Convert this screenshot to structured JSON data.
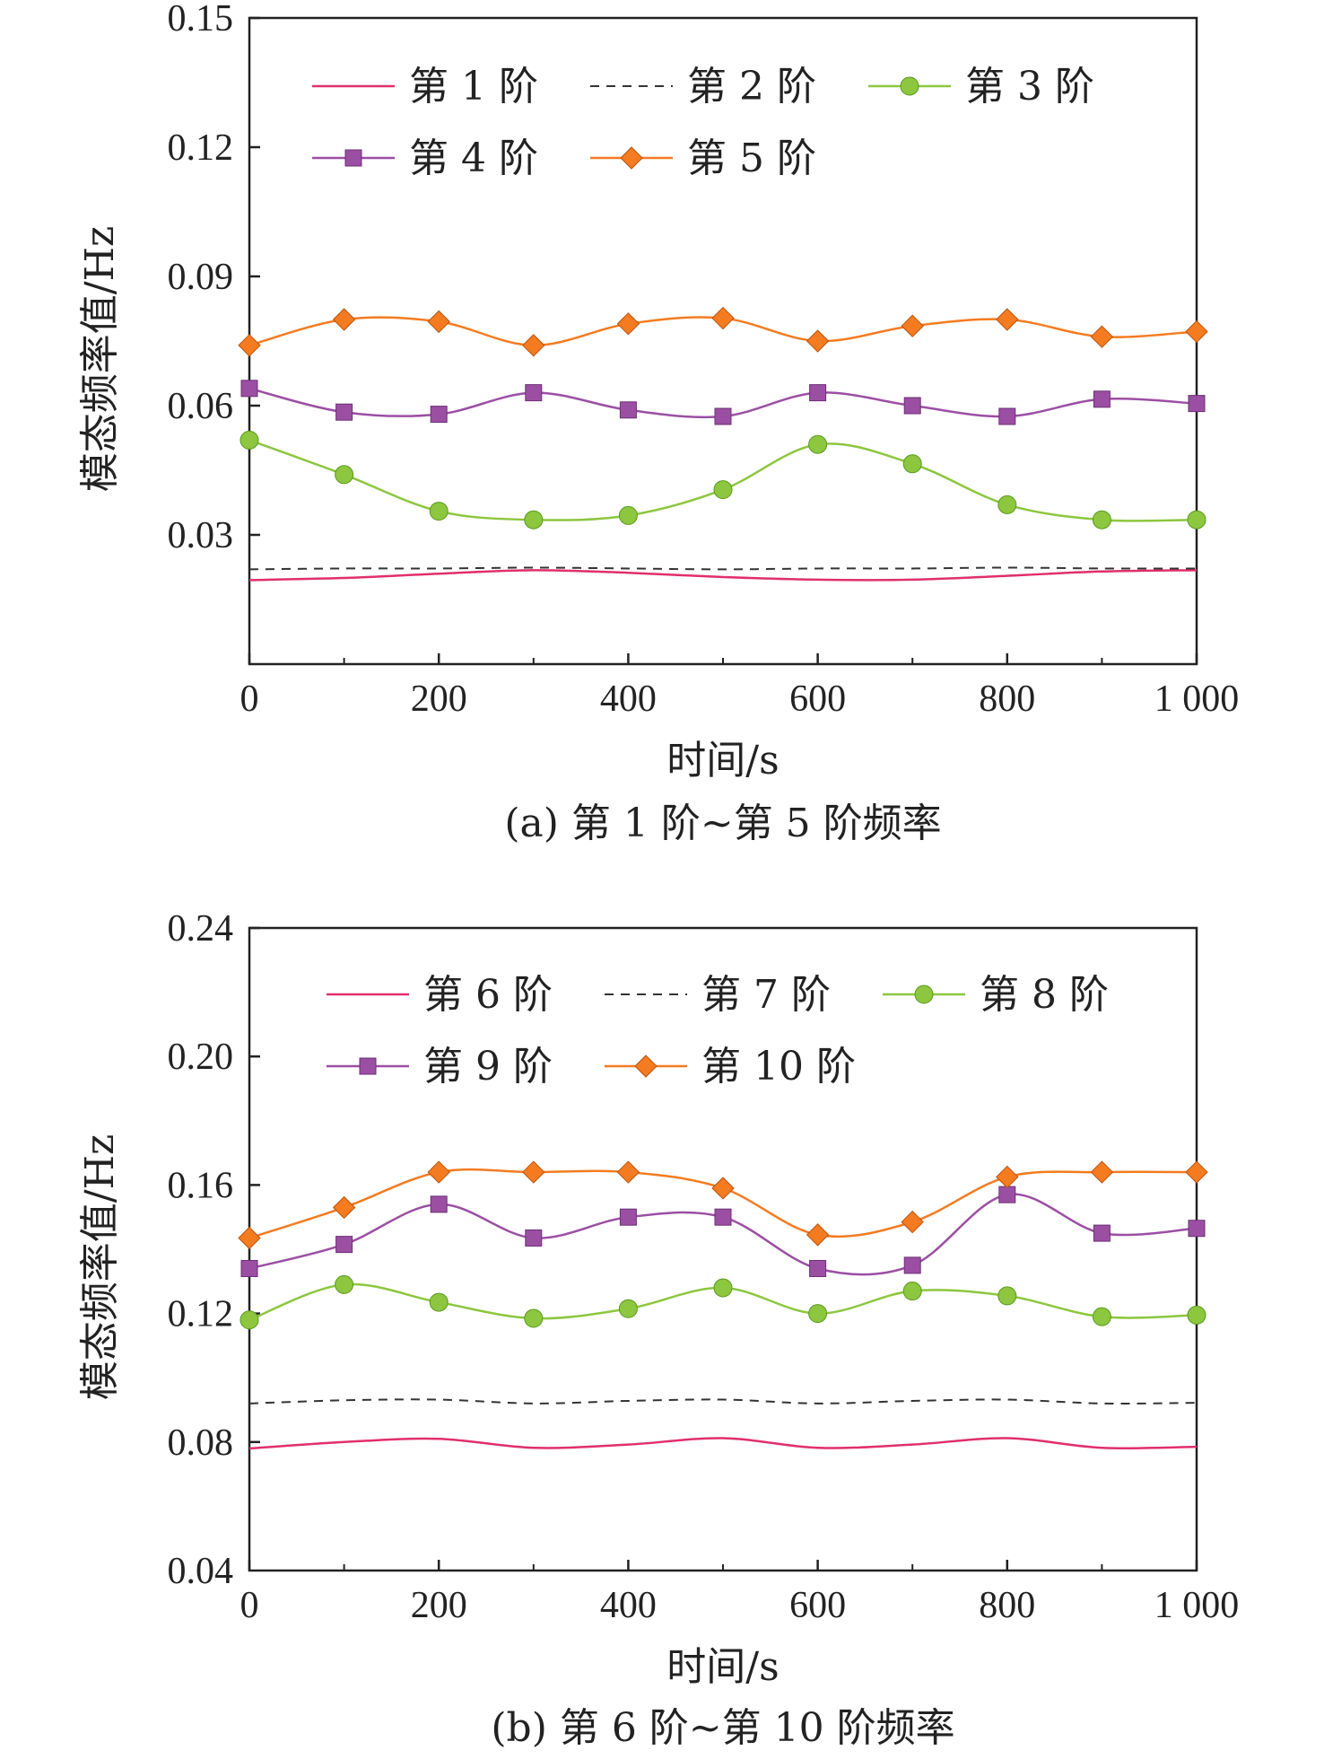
{
  "chart_data": [
    {
      "type": "line",
      "caption": "(a) 第 1 阶~第 5 阶频率",
      "xlabel": "时间/s",
      "ylabel": "模态频率值/Hz",
      "xlim": [
        0,
        1000
      ],
      "ylim": [
        0,
        0.15
      ],
      "x_ticks": [
        "0",
        "200",
        "400",
        "600",
        "800",
        "1 000"
      ],
      "y_ticks": [
        "0.03",
        "0.06",
        "0.09",
        "0.12",
        "0.15"
      ],
      "legend_position": "top",
      "x": [
        0,
        100,
        200,
        300,
        400,
        500,
        600,
        700,
        800,
        900,
        1000
      ],
      "series": [
        {
          "name": "第 1 阶",
          "style": "solid",
          "marker": "none",
          "color": "#E0306A",
          "values": [
            0.0195,
            0.02,
            0.021,
            0.0218,
            0.0212,
            0.0202,
            0.0196,
            0.0196,
            0.0205,
            0.0215,
            0.0218
          ]
        },
        {
          "name": "第 2 阶",
          "style": "dashed",
          "marker": "none",
          "color": "#333333",
          "values": [
            0.022,
            0.0222,
            0.0222,
            0.0224,
            0.0222,
            0.022,
            0.0222,
            0.0222,
            0.0224,
            0.0222,
            0.0222
          ]
        },
        {
          "name": "第 3 阶",
          "style": "solid",
          "marker": "circle",
          "color": "#8DC63F",
          "values": [
            0.052,
            0.044,
            0.0355,
            0.0335,
            0.0345,
            0.0405,
            0.051,
            0.0465,
            0.037,
            0.0335,
            0.0335
          ]
        },
        {
          "name": "第 4 阶",
          "style": "solid",
          "marker": "square",
          "color": "#9B4FA3",
          "values": [
            0.064,
            0.0585,
            0.058,
            0.063,
            0.059,
            0.0575,
            0.063,
            0.06,
            0.0575,
            0.0615,
            0.0605
          ]
        },
        {
          "name": "第 5 阶",
          "style": "solid",
          "marker": "diamond",
          "color": "#F47B20",
          "values": [
            0.074,
            0.08,
            0.0795,
            0.074,
            0.079,
            0.0803,
            0.075,
            0.0785,
            0.08,
            0.076,
            0.0772
          ]
        }
      ]
    },
    {
      "type": "line",
      "caption": "(b) 第 6 阶~第 10 阶频率",
      "xlabel": "时间/s",
      "ylabel": "模态频率值/Hz",
      "xlim": [
        0,
        1000
      ],
      "ylim": [
        0.04,
        0.24
      ],
      "x_ticks": [
        "0",
        "200",
        "400",
        "600",
        "800",
        "1 000"
      ],
      "y_ticks": [
        "0.04",
        "0.08",
        "0.12",
        "0.16",
        "0.20",
        "0.24"
      ],
      "legend_position": "top",
      "x": [
        0,
        100,
        200,
        300,
        400,
        500,
        600,
        700,
        800,
        900,
        1000
      ],
      "series": [
        {
          "name": "第 6 阶",
          "style": "solid",
          "marker": "none",
          "color": "#E0306A",
          "values": [
            0.078,
            0.08,
            0.081,
            0.0782,
            0.0792,
            0.0812,
            0.0782,
            0.0792,
            0.0812,
            0.0782,
            0.0785
          ]
        },
        {
          "name": "第 7 阶",
          "style": "dashed",
          "marker": "none",
          "color": "#333333",
          "values": [
            0.092,
            0.093,
            0.0932,
            0.092,
            0.0928,
            0.0932,
            0.092,
            0.0928,
            0.0932,
            0.092,
            0.0922
          ]
        },
        {
          "name": "第 8 阶",
          "style": "solid",
          "marker": "circle",
          "color": "#8DC63F",
          "values": [
            0.118,
            0.129,
            0.1235,
            0.1185,
            0.1215,
            0.128,
            0.12,
            0.127,
            0.1255,
            0.119,
            0.1195
          ]
        },
        {
          "name": "第 9 阶",
          "style": "solid",
          "marker": "square",
          "color": "#9B4FA3",
          "values": [
            0.134,
            0.1415,
            0.154,
            0.1435,
            0.15,
            0.15,
            0.134,
            0.135,
            0.157,
            0.145,
            0.1465
          ]
        },
        {
          "name": "第 10 阶",
          "style": "solid",
          "marker": "diamond",
          "color": "#F47B20",
          "values": [
            0.1435,
            0.153,
            0.164,
            0.164,
            0.164,
            0.159,
            0.1445,
            0.1485,
            0.1625,
            0.164,
            0.164
          ]
        }
      ]
    }
  ]
}
